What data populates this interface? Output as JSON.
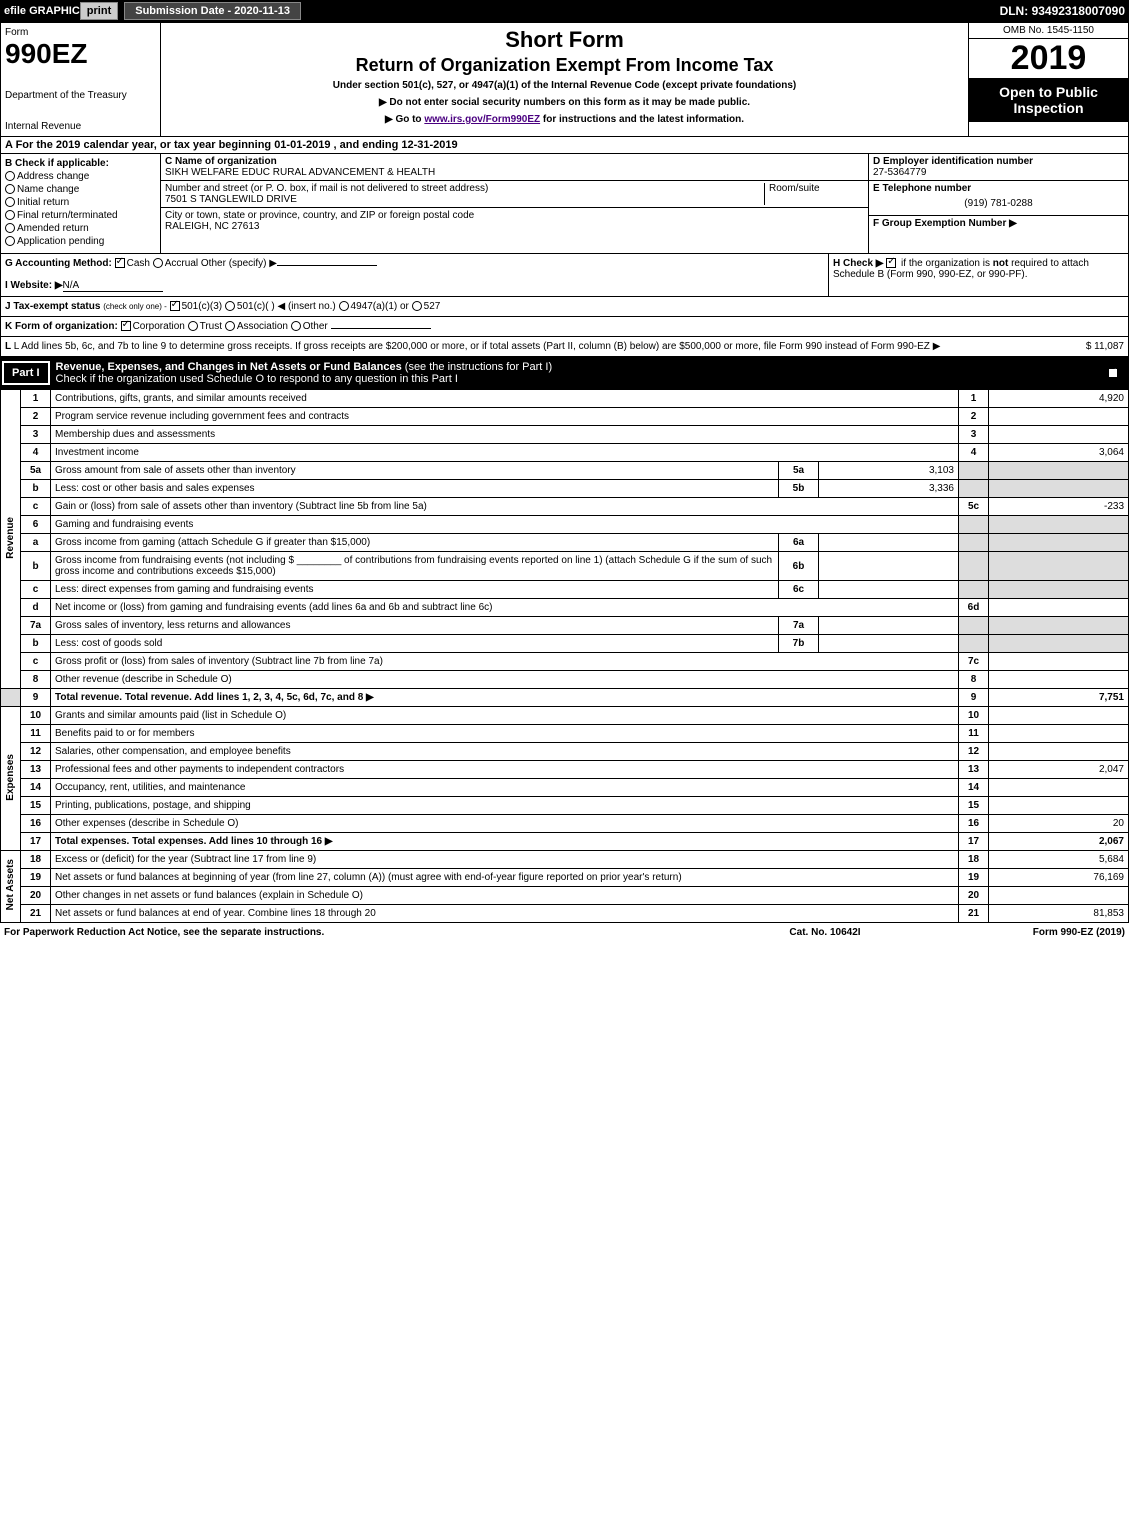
{
  "topbar": {
    "efile": "efile GRAPHIC",
    "print": "print",
    "submission_label": "Submission Date - ",
    "submission_date": "2020-11-13",
    "dln_label": "DLN: ",
    "dln": "93492318007090"
  },
  "header": {
    "form_label": "Form",
    "form_number": "990EZ",
    "dept1": "Department of the Treasury",
    "dept2": "Internal Revenue",
    "title1": "Short Form",
    "title2": "Return of Organization Exempt From Income Tax",
    "subtitle": "Under section 501(c), 527, or 4947(a)(1) of the Internal Revenue Code (except private foundations)",
    "note1": "▶ Do not enter social security numbers on this form as it may be made public.",
    "note2_pre": "▶ Go to ",
    "note2_link": "www.irs.gov/Form990EZ",
    "note2_post": " for instructions and the latest information.",
    "omb": "OMB No. 1545-1150",
    "year": "2019",
    "open": "Open to Public Inspection"
  },
  "section_a": {
    "text": "A For the 2019 calendar year, or tax year beginning 01-01-2019 , and ending 12-31-2019"
  },
  "col_b": {
    "label": "B Check if applicable:",
    "items": [
      "Address change",
      "Name change",
      "Initial return",
      "Final return/terminated",
      "Amended return",
      "Application pending"
    ]
  },
  "col_c": {
    "name_label": "C Name of organization",
    "name": "SIKH WELFARE EDUC RURAL ADVANCEMENT & HEALTH",
    "addr_label": "Number and street (or P. O. box, if mail is not delivered to street address)",
    "room_label": "Room/suite",
    "addr": "7501 S TANGLEWILD DRIVE",
    "city_label": "City or town, state or province, country, and ZIP or foreign postal code",
    "city": "RALEIGH, NC  27613"
  },
  "col_d": {
    "label": "D Employer identification number",
    "ein": "27-5364779",
    "e_label": "E Telephone number",
    "phone": "(919) 781-0288",
    "f_label": "F Group Exemption Number ▶"
  },
  "row_g": {
    "label": "G Accounting Method:",
    "cash": "Cash",
    "accrual": "Accrual",
    "other": "Other (specify) ▶",
    "h_label": "H Check ▶",
    "h_text": "if the organization is ",
    "h_not": "not",
    "h_text2": " required to attach Schedule B (Form 990, 990-EZ, or 990-PF)."
  },
  "row_i": {
    "label": "I Website: ▶",
    "value": "N/A"
  },
  "row_j": {
    "label": "J Tax-exempt status",
    "sub": "(check only one) -",
    "opts": [
      "501(c)(3)",
      "501(c)(  ) ◀ (insert no.)",
      "4947(a)(1) or",
      "527"
    ]
  },
  "row_k": {
    "label": "K Form of organization:",
    "opts": [
      "Corporation",
      "Trust",
      "Association",
      "Other"
    ]
  },
  "row_l": {
    "text": "L Add lines 5b, 6c, and 7b to line 9 to determine gross receipts. If gross receipts are $200,000 or more, or if total assets (Part II, column (B) below) are $500,000 or more, file Form 990 instead of Form 990-EZ",
    "arrow": "▶",
    "value": "$ 11,087"
  },
  "part1": {
    "tag": "Part I",
    "title": "Revenue, Expenses, and Changes in Net Assets or Fund Balances",
    "title_sub": "(see the instructions for Part I)",
    "check_line": "Check if the organization used Schedule O to respond to any question in this Part I"
  },
  "sections": {
    "revenue": "Revenue",
    "expenses": "Expenses",
    "netassets": "Net Assets"
  },
  "lines": {
    "1": {
      "desc": "Contributions, gifts, grants, and similar amounts received",
      "num": "1",
      "val": "4,920"
    },
    "2": {
      "desc": "Program service revenue including government fees and contracts",
      "num": "2",
      "val": ""
    },
    "3": {
      "desc": "Membership dues and assessments",
      "num": "3",
      "val": ""
    },
    "4": {
      "desc": "Investment income",
      "num": "4",
      "val": "3,064"
    },
    "5a": {
      "desc": "Gross amount from sale of assets other than inventory",
      "sub": "5a",
      "subval": "3,103"
    },
    "5b": {
      "desc": "Less: cost or other basis and sales expenses",
      "sub": "5b",
      "subval": "3,336"
    },
    "5c": {
      "desc": "Gain or (loss) from sale of assets other than inventory (Subtract line 5b from line 5a)",
      "num": "5c",
      "val": "-233"
    },
    "6": {
      "desc": "Gaming and fundraising events"
    },
    "6a": {
      "desc": "Gross income from gaming (attach Schedule G if greater than $15,000)",
      "sub": "6a",
      "subval": ""
    },
    "6b": {
      "desc": "Gross income from fundraising events (not including $ ________ of contributions from fundraising events reported on line 1) (attach Schedule G if the sum of such gross income and contributions exceeds $15,000)",
      "sub": "6b",
      "subval": ""
    },
    "6c": {
      "desc": "Less: direct expenses from gaming and fundraising events",
      "sub": "6c",
      "subval": ""
    },
    "6d": {
      "desc": "Net income or (loss) from gaming and fundraising events (add lines 6a and 6b and subtract line 6c)",
      "num": "6d",
      "val": ""
    },
    "7a": {
      "desc": "Gross sales of inventory, less returns and allowances",
      "sub": "7a",
      "subval": ""
    },
    "7b": {
      "desc": "Less: cost of goods sold",
      "sub": "7b",
      "subval": ""
    },
    "7c": {
      "desc": "Gross profit or (loss) from sales of inventory (Subtract line 7b from line 7a)",
      "num": "7c",
      "val": ""
    },
    "8": {
      "desc": "Other revenue (describe in Schedule O)",
      "num": "8",
      "val": ""
    },
    "9": {
      "desc": "Total revenue. Add lines 1, 2, 3, 4, 5c, 6d, 7c, and 8",
      "num": "9",
      "val": "7,751",
      "bold": true
    },
    "10": {
      "desc": "Grants and similar amounts paid (list in Schedule O)",
      "num": "10",
      "val": ""
    },
    "11": {
      "desc": "Benefits paid to or for members",
      "num": "11",
      "val": ""
    },
    "12": {
      "desc": "Salaries, other compensation, and employee benefits",
      "num": "12",
      "val": ""
    },
    "13": {
      "desc": "Professional fees and other payments to independent contractors",
      "num": "13",
      "val": "2,047"
    },
    "14": {
      "desc": "Occupancy, rent, utilities, and maintenance",
      "num": "14",
      "val": ""
    },
    "15": {
      "desc": "Printing, publications, postage, and shipping",
      "num": "15",
      "val": ""
    },
    "16": {
      "desc": "Other expenses (describe in Schedule O)",
      "num": "16",
      "val": "20"
    },
    "17": {
      "desc": "Total expenses. Add lines 10 through 16",
      "num": "17",
      "val": "2,067",
      "bold": true
    },
    "18": {
      "desc": "Excess or (deficit) for the year (Subtract line 17 from line 9)",
      "num": "18",
      "val": "5,684"
    },
    "19": {
      "desc": "Net assets or fund balances at beginning of year (from line 27, column (A)) (must agree with end-of-year figure reported on prior year's return)",
      "num": "19",
      "val": "76,169"
    },
    "20": {
      "desc": "Other changes in net assets or fund balances (explain in Schedule O)",
      "num": "20",
      "val": ""
    },
    "21": {
      "desc": "Net assets or fund balances at end of year. Combine lines 18 through 20",
      "num": "21",
      "val": "81,853"
    }
  },
  "footer": {
    "left": "For Paperwork Reduction Act Notice, see the separate instructions.",
    "mid": "Cat. No. 10642I",
    "right": "Form 990-EZ (2019)"
  },
  "colors": {
    "black": "#000000",
    "white": "#ffffff",
    "shade": "#dddddd",
    "link": "#4a0080"
  }
}
